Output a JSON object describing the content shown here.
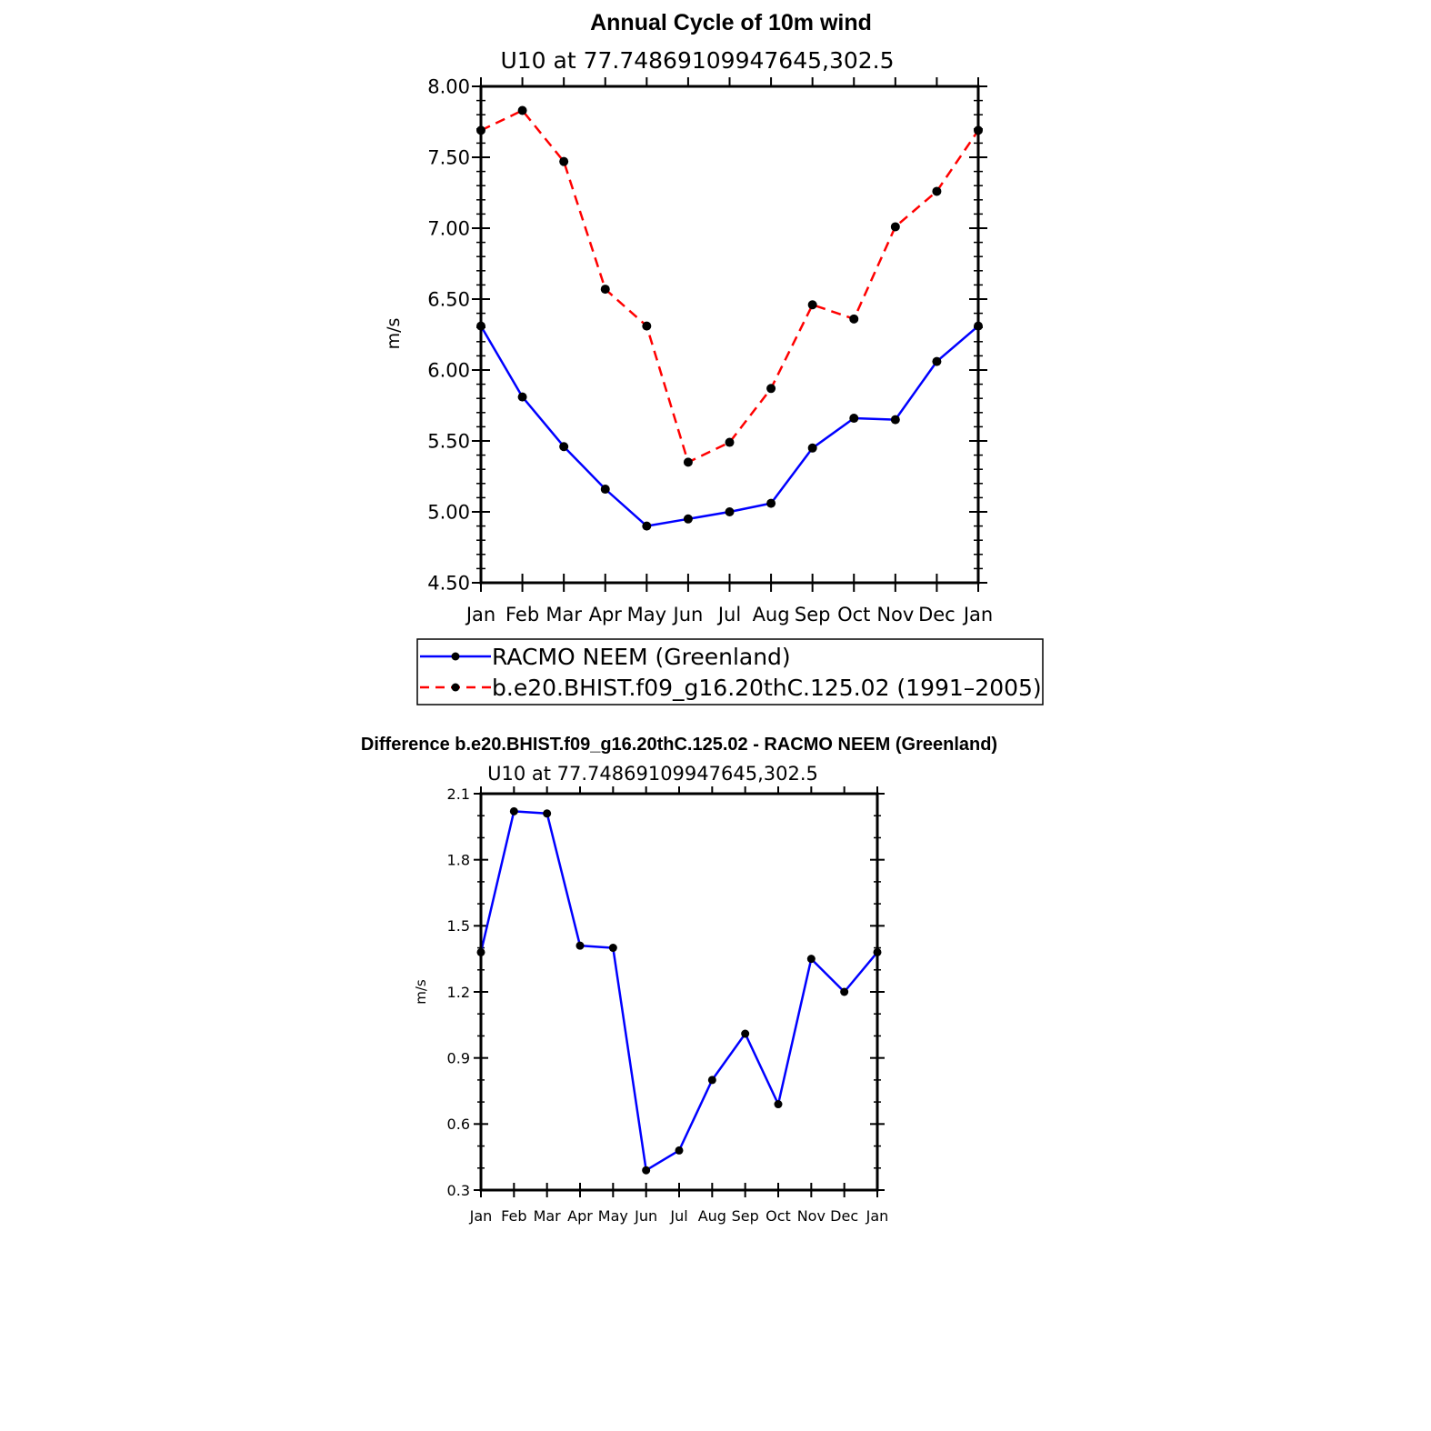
{
  "chart_data": [
    {
      "type": "line",
      "title": "Annual Cycle of 10m wind",
      "subtitle": "U10 at 77.74869109947645,302.5",
      "ylabel": "m/s",
      "xlabel": "",
      "categories": [
        "Jan",
        "Feb",
        "Mar",
        "Apr",
        "May",
        "Jun",
        "Jul",
        "Aug",
        "Sep",
        "Oct",
        "Nov",
        "Dec",
        "Jan"
      ],
      "ylim": [
        4.5,
        8.0
      ],
      "yticks": [
        "4.50",
        "5.00",
        "5.50",
        "6.00",
        "6.50",
        "7.00",
        "7.50",
        "8.00"
      ],
      "grid": false,
      "legend_position": "below",
      "series": [
        {
          "name": "RACMO NEEM (Greenland)",
          "color": "#0000ff",
          "dash": "solid",
          "values": [
            6.31,
            5.81,
            5.46,
            5.16,
            4.9,
            4.95,
            5.0,
            5.06,
            5.45,
            5.66,
            5.65,
            6.06,
            6.31
          ]
        },
        {
          "name": "b.e20.BHIST.f09_g16.20thC.125.02 (1991–2005)",
          "color": "#ff0000",
          "dash": "dashed",
          "values": [
            7.69,
            7.83,
            7.47,
            6.57,
            6.31,
            5.35,
            5.49,
            5.87,
            6.46,
            6.36,
            7.01,
            7.26,
            7.69
          ]
        }
      ]
    },
    {
      "type": "line",
      "title": "Difference b.e20.BHIST.f09_g16.20thC.125.02 - RACMO NEEM (Greenland)",
      "subtitle": "U10 at 77.74869109947645,302.5",
      "ylabel": "m/s",
      "xlabel": "",
      "categories": [
        "Jan",
        "Feb",
        "Mar",
        "Apr",
        "May",
        "Jun",
        "Jul",
        "Aug",
        "Sep",
        "Oct",
        "Nov",
        "Dec",
        "Jan"
      ],
      "ylim": [
        0.3,
        2.1
      ],
      "yticks": [
        "0.3",
        "0.6",
        "0.9",
        "1.2",
        "1.5",
        "1.8",
        "2.1"
      ],
      "grid": false,
      "series": [
        {
          "color": "#0000ff",
          "dash": "solid",
          "values": [
            1.38,
            2.02,
            2.01,
            1.41,
            1.4,
            0.39,
            0.48,
            0.8,
            1.01,
            0.69,
            1.35,
            1.2,
            1.38
          ]
        }
      ]
    }
  ]
}
